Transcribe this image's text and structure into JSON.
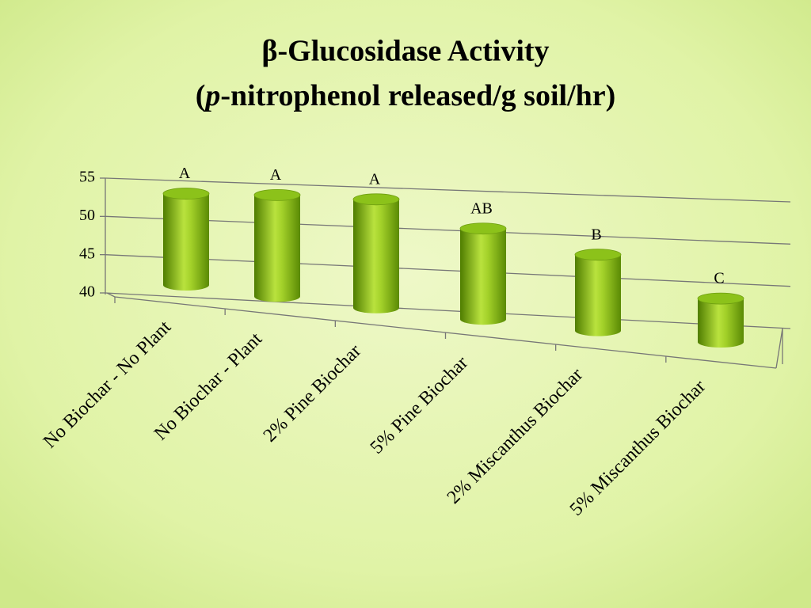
{
  "chart_data": {
    "type": "bar3d",
    "title": "β-Glucosidase Activity",
    "subtitle": [
      "(",
      "p",
      "-nitrophenol released/g soil/hr)"
    ],
    "categories": [
      "No Biochar - No Plant",
      "No Biochar -  Plant",
      "2% Pine Biochar",
      "5% Pine Biochar",
      "2% Miscanthus Biochar",
      "5% Miscanthus Biochar"
    ],
    "values": [
      51.9,
      52.8,
      53.3,
      50.8,
      48.8,
      44.9
    ],
    "annotations": [
      "A",
      "A",
      "A",
      "AB",
      "B",
      "C"
    ],
    "color": "#8cc21a",
    "ylim": [
      40,
      55
    ],
    "yticks": [
      40,
      45,
      50,
      55
    ],
    "grid": true
  }
}
